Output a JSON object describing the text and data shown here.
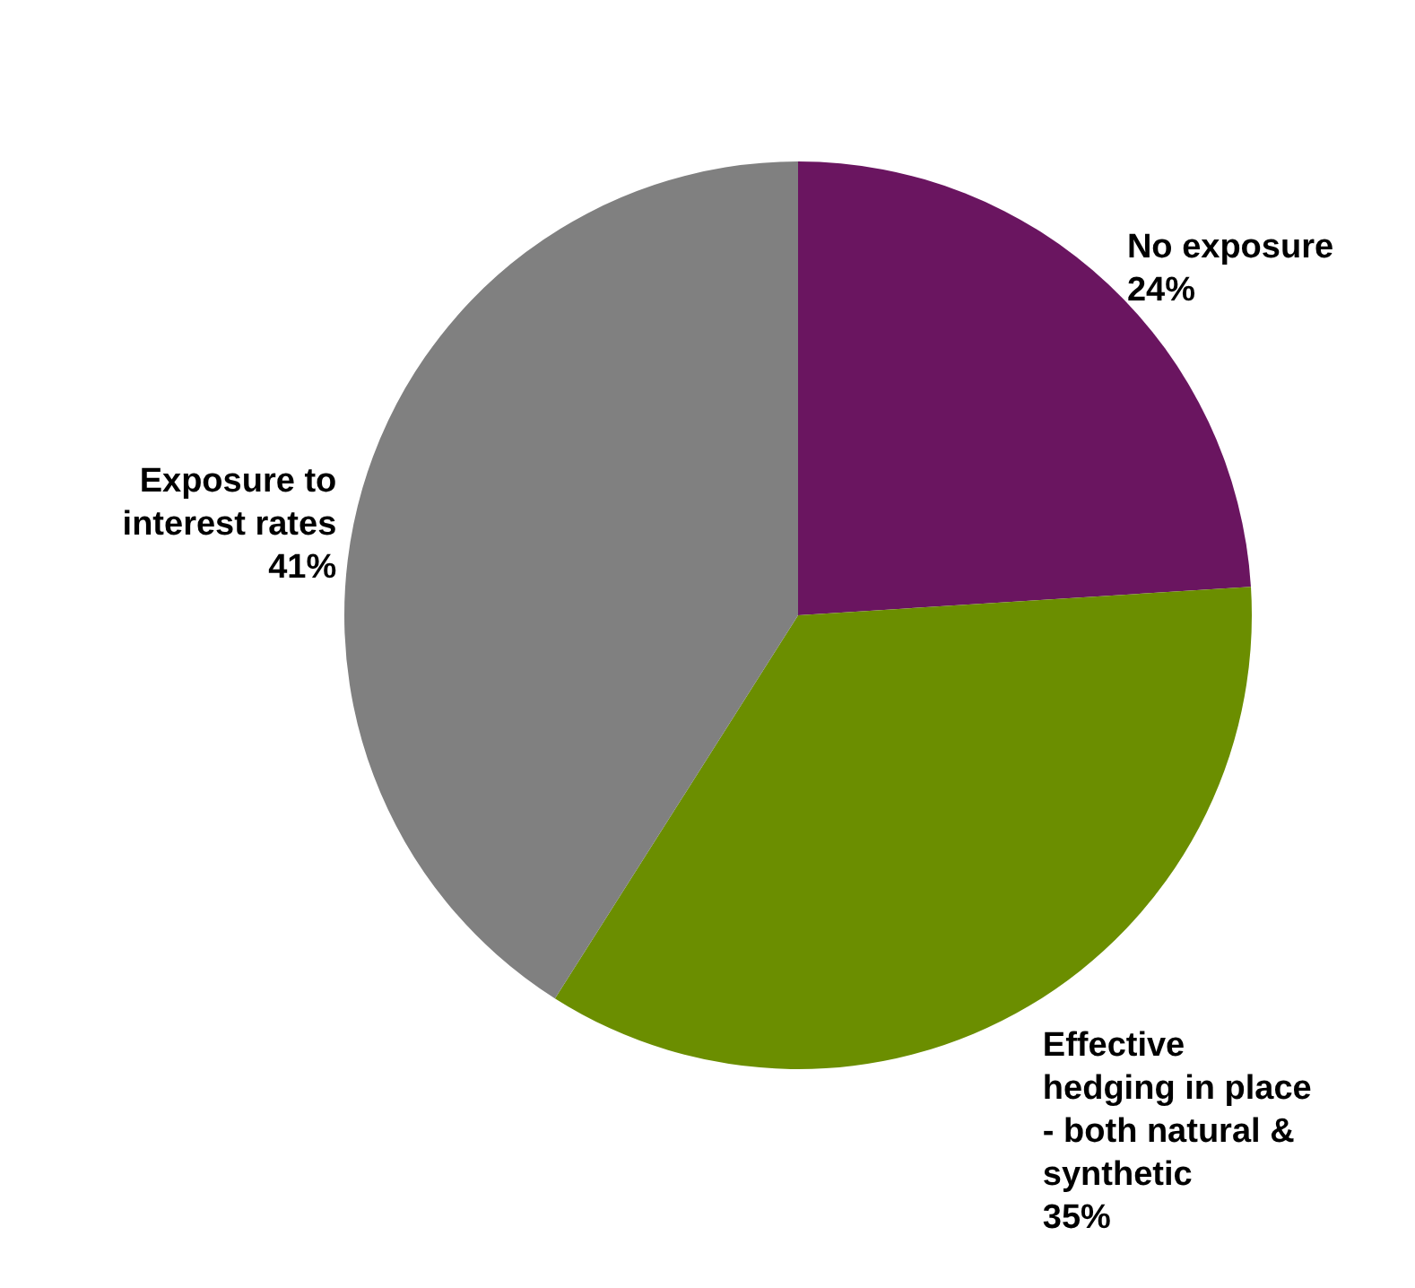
{
  "chart_data": {
    "type": "pie",
    "categories": [
      "No exposure",
      "Effective hedging in place - both natural & synthetic",
      "Exposure to interest rates"
    ],
    "values": [
      24,
      35,
      41
    ],
    "colors": [
      "#6a1560",
      "#6b8e00",
      "#808080"
    ],
    "value_labels": [
      "24%",
      "35%",
      "41%"
    ]
  }
}
